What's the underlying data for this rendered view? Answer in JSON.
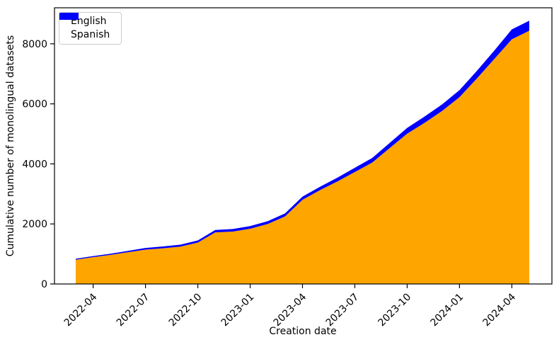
{
  "chart_data": {
    "type": "area",
    "stacked": true,
    "title": "",
    "xlabel": "Creation date",
    "ylabel": "Cumulative number of monolingual datasets",
    "x": [
      "2022-03",
      "2022-04",
      "2022-05",
      "2022-06",
      "2022-07",
      "2022-08",
      "2022-09",
      "2022-10",
      "2022-11",
      "2022-12",
      "2023-01",
      "2023-02",
      "2023-03",
      "2023-04",
      "2023-05",
      "2023-06",
      "2023-07",
      "2023-08",
      "2023-09",
      "2023-10",
      "2023-11",
      "2023-12",
      "2024-01",
      "2024-02",
      "2024-03",
      "2024-04",
      "2024-05"
    ],
    "series": [
      {
        "name": "English",
        "color": "#FFA500",
        "values": [
          810,
          895,
          970,
          1060,
          1145,
          1190,
          1245,
          1380,
          1720,
          1745,
          1840,
          1995,
          2250,
          2805,
          3125,
          3415,
          3730,
          4045,
          4530,
          5005,
          5370,
          5760,
          6225,
          6845,
          7500,
          8150,
          8435
        ]
      },
      {
        "name": "Spanish",
        "color": "#0000FF",
        "values": [
          30,
          35,
          40,
          45,
          55,
          60,
          65,
          70,
          80,
          85,
          90,
          95,
          100,
          105,
          115,
          125,
          140,
          155,
          170,
          195,
          210,
          220,
          235,
          255,
          280,
          330,
          335
        ]
      }
    ],
    "x_tick_labels": [
      "2022-04",
      "2022-07",
      "2022-10",
      "2023-01",
      "2023-04",
      "2023-07",
      "2023-10",
      "2024-01",
      "2024-04"
    ],
    "x_tick_rotation": 45,
    "y_ticks": [
      0,
      2000,
      4000,
      6000,
      8000
    ],
    "ylim": [
      0,
      9200
    ],
    "grid": false,
    "legend_position": "upper-left",
    "axis_color": "#000000",
    "background_color": "#ffffff"
  }
}
